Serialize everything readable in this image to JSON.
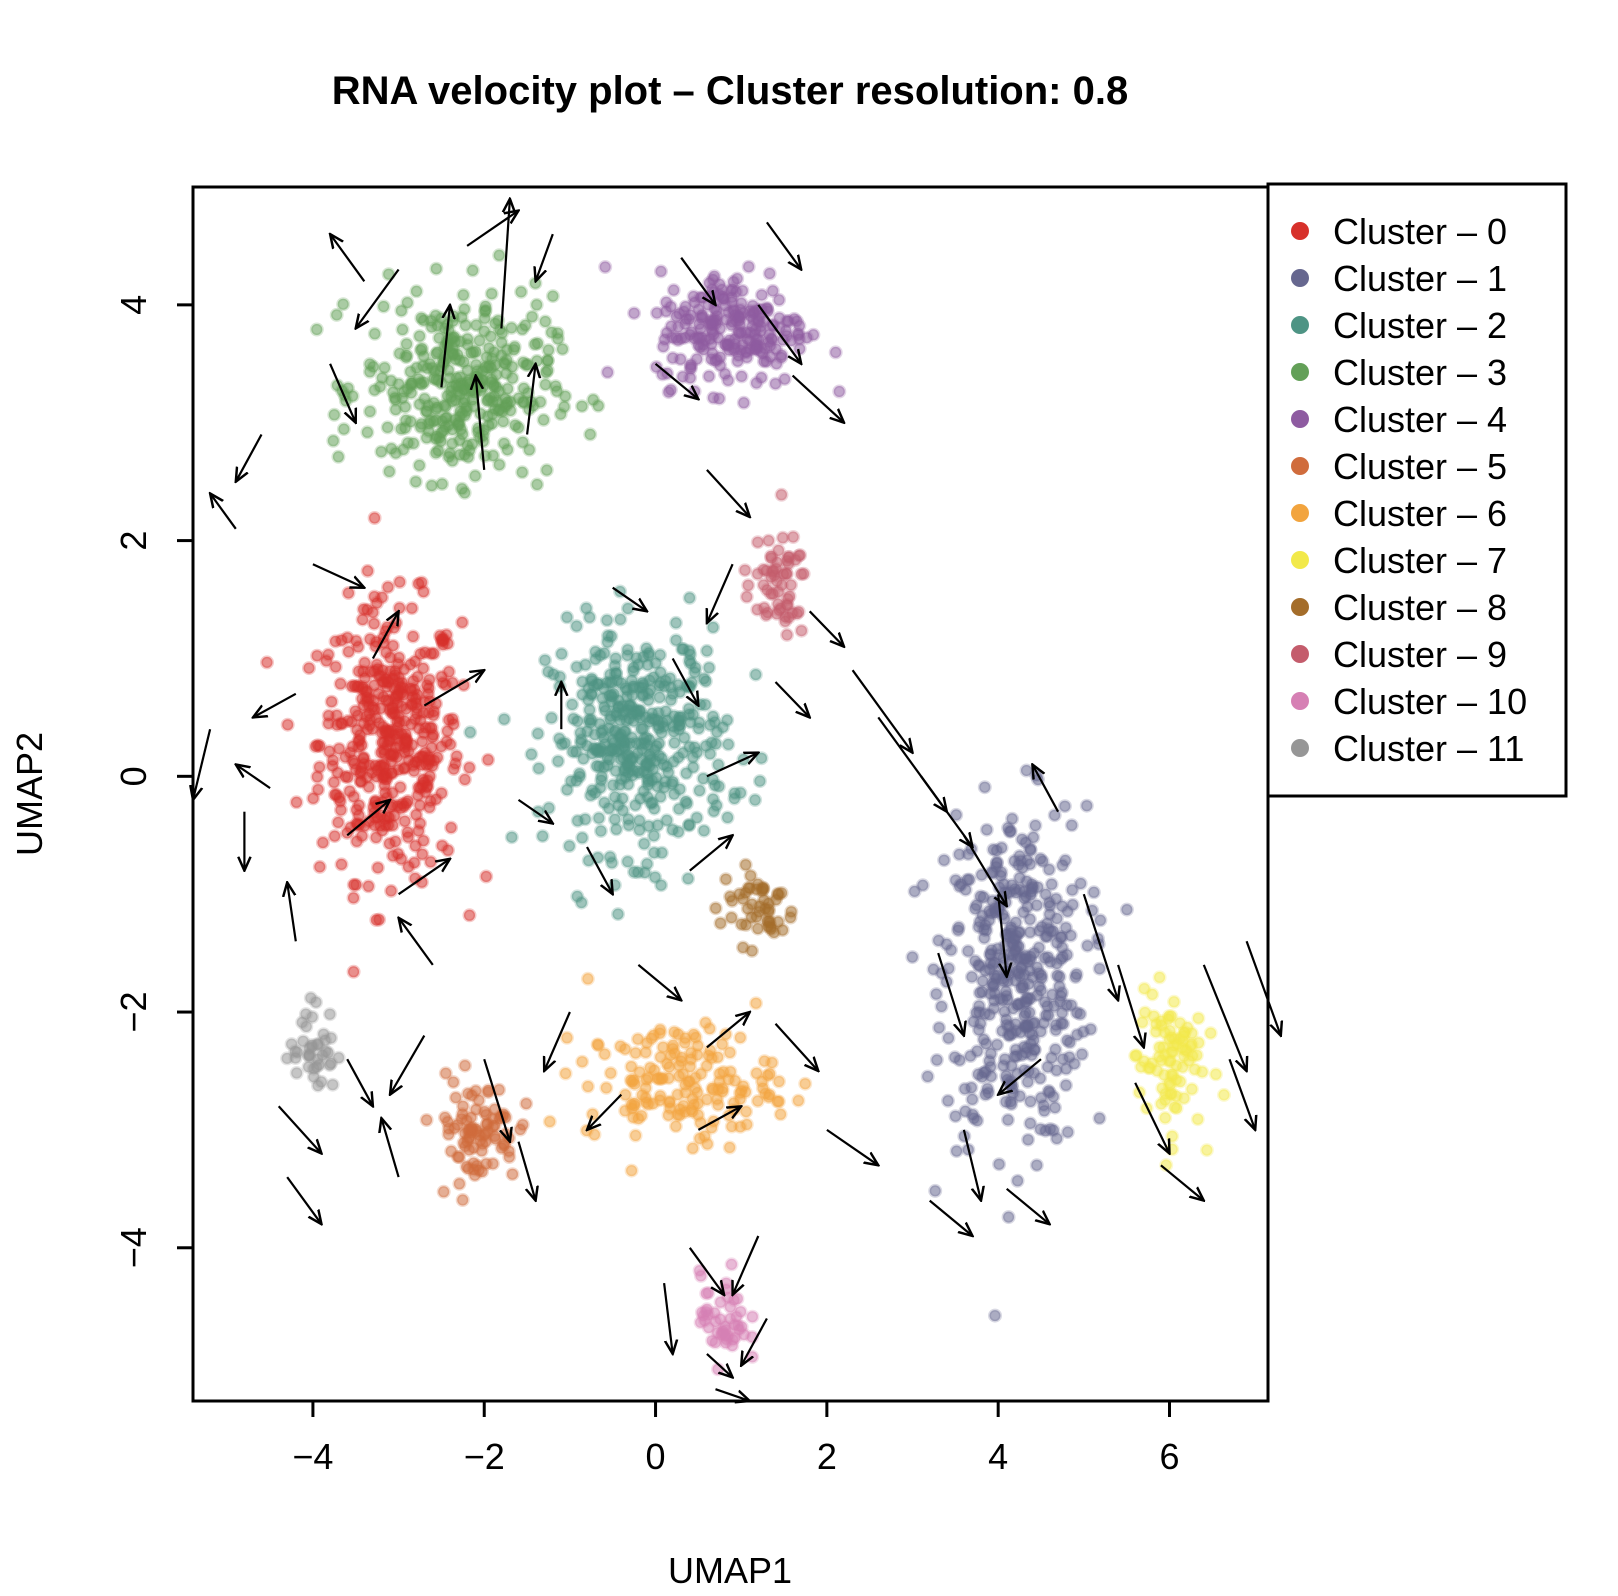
{
  "chart_data": {
    "type": "scatter",
    "title": "RNA velocity plot – Cluster resolution: 0.8",
    "xlabel": "UMAP1",
    "ylabel": "UMAP2",
    "xlim": [
      -5.4,
      7.15
    ],
    "ylim": [
      -5.3,
      5.0
    ],
    "x_ticks": [
      {
        "value": -4,
        "label": "−4"
      },
      {
        "value": -2,
        "label": "−2"
      },
      {
        "value": 0,
        "label": "0"
      },
      {
        "value": 2,
        "label": "2"
      },
      {
        "value": 4,
        "label": "4"
      },
      {
        "value": 6,
        "label": "6"
      }
    ],
    "y_ticks": [
      {
        "value": -4,
        "label": "−4"
      },
      {
        "value": -2,
        "label": "−2"
      },
      {
        "value": 0,
        "label": "0"
      },
      {
        "value": 2,
        "label": "2"
      },
      {
        "value": 4,
        "label": "4"
      }
    ],
    "grid": false,
    "legend_position": "top-right, outside plot",
    "arrow_color": "#000000",
    "series": [
      {
        "name": "Cluster – 0",
        "color": "#d7312b",
        "centroid": [
          -3.1,
          0.3
        ],
        "spread": [
          0.75,
          1.05
        ],
        "count": 430
      },
      {
        "name": "Cluster – 1",
        "color": "#66678f",
        "centroid": [
          4.2,
          -1.7
        ],
        "spread": [
          0.75,
          1.3
        ],
        "count": 420
      },
      {
        "name": "Cluster – 2",
        "color": "#4e9484",
        "centroid": [
          -0.2,
          0.3
        ],
        "spread": [
          0.95,
          0.85
        ],
        "count": 420
      },
      {
        "name": "Cluster – 3",
        "color": "#63a058",
        "centroid": [
          -2.3,
          3.3
        ],
        "spread": [
          1.0,
          0.7
        ],
        "count": 360
      },
      {
        "name": "Cluster – 4",
        "color": "#8e5ba1",
        "centroid": [
          0.9,
          3.8
        ],
        "spread": [
          0.8,
          0.45
        ],
        "count": 230
      },
      {
        "name": "Cluster – 5",
        "color": "#d06c3c",
        "centroid": [
          -2.1,
          -3.0
        ],
        "spread": [
          0.45,
          0.4
        ],
        "count": 90
      },
      {
        "name": "Cluster – 6",
        "color": "#f2a43e",
        "centroid": [
          0.3,
          -2.6
        ],
        "spread": [
          1.0,
          0.45
        ],
        "count": 170
      },
      {
        "name": "Cluster – 7",
        "color": "#f2e94a",
        "centroid": [
          6.0,
          -2.4
        ],
        "spread": [
          0.35,
          0.55
        ],
        "count": 90
      },
      {
        "name": "Cluster – 8",
        "color": "#a46d2a",
        "centroid": [
          1.2,
          -1.1
        ],
        "spread": [
          0.4,
          0.3
        ],
        "count": 50
      },
      {
        "name": "Cluster – 9",
        "color": "#c45c6c",
        "centroid": [
          1.4,
          1.6
        ],
        "spread": [
          0.35,
          0.4
        ],
        "count": 60
      },
      {
        "name": "Cluster – 10",
        "color": "#d680b4",
        "centroid": [
          0.8,
          -4.6
        ],
        "spread": [
          0.25,
          0.35
        ],
        "count": 50
      },
      {
        "name": "Cluster – 11",
        "color": "#969696",
        "centroid": [
          -4.0,
          -2.3
        ],
        "spread": [
          0.25,
          0.35
        ],
        "count": 40
      }
    ],
    "velocity_arrows": [
      {
        "from": [
          -3.4,
          4.2
        ],
        "to": [
          -3.8,
          4.6
        ]
      },
      {
        "from": [
          -3.0,
          4.3
        ],
        "to": [
          -3.5,
          3.8
        ]
      },
      {
        "from": [
          -2.2,
          4.5
        ],
        "to": [
          -1.6,
          4.8
        ]
      },
      {
        "from": [
          -1.8,
          3.8
        ],
        "to": [
          -1.7,
          4.9
        ]
      },
      {
        "from": [
          -2.5,
          3.3
        ],
        "to": [
          -2.4,
          4.0
        ]
      },
      {
        "from": [
          -3.8,
          3.5
        ],
        "to": [
          -3.5,
          3.0
        ]
      },
      {
        "from": [
          -1.2,
          4.6
        ],
        "to": [
          -1.4,
          4.2
        ]
      },
      {
        "from": [
          -2.0,
          2.6
        ],
        "to": [
          -2.1,
          3.4
        ]
      },
      {
        "from": [
          -1.5,
          2.9
        ],
        "to": [
          -1.4,
          3.5
        ]
      },
      {
        "from": [
          -4.6,
          2.9
        ],
        "to": [
          -4.9,
          2.5
        ]
      },
      {
        "from": [
          -4.9,
          2.1
        ],
        "to": [
          -5.2,
          2.4
        ]
      },
      {
        "from": [
          -4.0,
          1.8
        ],
        "to": [
          -3.4,
          1.6
        ]
      },
      {
        "from": [
          -3.3,
          1.0
        ],
        "to": [
          -3.0,
          1.4
        ]
      },
      {
        "from": [
          -2.7,
          0.6
        ],
        "to": [
          -2.0,
          0.9
        ]
      },
      {
        "from": [
          -4.2,
          0.7
        ],
        "to": [
          -4.7,
          0.5
        ]
      },
      {
        "from": [
          -4.5,
          -0.1
        ],
        "to": [
          -4.9,
          0.1
        ]
      },
      {
        "from": [
          -3.6,
          -0.5
        ],
        "to": [
          -3.1,
          -0.2
        ]
      },
      {
        "from": [
          -3.0,
          -1.0
        ],
        "to": [
          -2.4,
          -0.7
        ]
      },
      {
        "from": [
          -4.2,
          -1.4
        ],
        "to": [
          -4.3,
          -0.9
        ]
      },
      {
        "from": [
          -2.6,
          -1.6
        ],
        "to": [
          -3.0,
          -1.2
        ]
      },
      {
        "from": [
          -5.2,
          0.4
        ],
        "to": [
          -5.4,
          -0.2
        ]
      },
      {
        "from": [
          -4.8,
          -0.3
        ],
        "to": [
          -4.8,
          -0.8
        ]
      },
      {
        "from": [
          -0.5,
          1.6
        ],
        "to": [
          -0.1,
          1.4
        ]
      },
      {
        "from": [
          0.2,
          1.0
        ],
        "to": [
          0.5,
          0.6
        ]
      },
      {
        "from": [
          -1.1,
          0.4
        ],
        "to": [
          -1.1,
          0.8
        ]
      },
      {
        "from": [
          0.6,
          0.0
        ],
        "to": [
          1.2,
          0.2
        ]
      },
      {
        "from": [
          -0.8,
          -0.6
        ],
        "to": [
          -0.5,
          -1.0
        ]
      },
      {
        "from": [
          0.4,
          -0.8
        ],
        "to": [
          0.9,
          -0.5
        ]
      },
      {
        "from": [
          -1.6,
          -0.2
        ],
        "to": [
          -1.2,
          -0.4
        ]
      },
      {
        "from": [
          0.9,
          1.8
        ],
        "to": [
          0.6,
          1.3
        ]
      },
      {
        "from": [
          0.3,
          4.4
        ],
        "to": [
          0.7,
          4.0
        ]
      },
      {
        "from": [
          1.2,
          4.0
        ],
        "to": [
          1.7,
          3.5
        ]
      },
      {
        "from": [
          1.6,
          3.4
        ],
        "to": [
          2.2,
          3.0
        ]
      },
      {
        "from": [
          0.0,
          3.5
        ],
        "to": [
          0.5,
          3.2
        ]
      },
      {
        "from": [
          0.6,
          2.6
        ],
        "to": [
          1.1,
          2.2
        ]
      },
      {
        "from": [
          1.3,
          4.7
        ],
        "to": [
          1.7,
          4.3
        ]
      },
      {
        "from": [
          1.8,
          1.4
        ],
        "to": [
          2.2,
          1.1
        ]
      },
      {
        "from": [
          1.4,
          0.8
        ],
        "to": [
          1.8,
          0.5
        ]
      },
      {
        "from": [
          2.3,
          0.9
        ],
        "to": [
          3.0,
          0.2
        ]
      },
      {
        "from": [
          2.6,
          0.5
        ],
        "to": [
          3.4,
          -0.3
        ]
      },
      {
        "from": [
          3.1,
          0.0
        ],
        "to": [
          3.7,
          -0.6
        ]
      },
      {
        "from": [
          3.6,
          -0.5
        ],
        "to": [
          4.1,
          -1.1
        ]
      },
      {
        "from": [
          4.0,
          -1.0
        ],
        "to": [
          4.1,
          -1.7
        ]
      },
      {
        "from": [
          3.3,
          -1.5
        ],
        "to": [
          3.6,
          -2.2
        ]
      },
      {
        "from": [
          4.5,
          -2.4
        ],
        "to": [
          4.0,
          -2.7
        ]
      },
      {
        "from": [
          3.6,
          -3.0
        ],
        "to": [
          3.8,
          -3.6
        ]
      },
      {
        "from": [
          3.2,
          -3.6
        ],
        "to": [
          3.7,
          -3.9
        ]
      },
      {
        "from": [
          4.1,
          -3.5
        ],
        "to": [
          4.6,
          -3.8
        ]
      },
      {
        "from": [
          5.0,
          -1.0
        ],
        "to": [
          5.4,
          -1.9
        ]
      },
      {
        "from": [
          5.4,
          -1.6
        ],
        "to": [
          5.7,
          -2.3
        ]
      },
      {
        "from": [
          5.6,
          -2.6
        ],
        "to": [
          6.0,
          -3.2
        ]
      },
      {
        "from": [
          6.4,
          -1.6
        ],
        "to": [
          6.9,
          -2.5
        ]
      },
      {
        "from": [
          6.7,
          -2.4
        ],
        "to": [
          7.0,
          -3.0
        ]
      },
      {
        "from": [
          6.9,
          -1.4
        ],
        "to": [
          7.3,
          -2.2
        ]
      },
      {
        "from": [
          5.9,
          -3.3
        ],
        "to": [
          6.4,
          -3.6
        ]
      },
      {
        "from": [
          4.7,
          -0.3
        ],
        "to": [
          4.4,
          0.1
        ]
      },
      {
        "from": [
          -0.2,
          -1.6
        ],
        "to": [
          0.3,
          -1.9
        ]
      },
      {
        "from": [
          0.6,
          -2.3
        ],
        "to": [
          1.1,
          -2.0
        ]
      },
      {
        "from": [
          -0.4,
          -2.7
        ],
        "to": [
          -0.8,
          -3.0
        ]
      },
      {
        "from": [
          0.5,
          -3.0
        ],
        "to": [
          1.0,
          -2.8
        ]
      },
      {
        "from": [
          1.4,
          -2.1
        ],
        "to": [
          1.9,
          -2.5
        ]
      },
      {
        "from": [
          2.0,
          -3.0
        ],
        "to": [
          2.6,
          -3.3
        ]
      },
      {
        "from": [
          -1.0,
          -2.0
        ],
        "to": [
          -1.3,
          -2.5
        ]
      },
      {
        "from": [
          -2.7,
          -2.2
        ],
        "to": [
          -3.1,
          -2.7
        ]
      },
      {
        "from": [
          -3.6,
          -2.4
        ],
        "to": [
          -3.3,
          -2.8
        ]
      },
      {
        "from": [
          -3.0,
          -3.4
        ],
        "to": [
          -3.2,
          -2.9
        ]
      },
      {
        "from": [
          -4.4,
          -2.8
        ],
        "to": [
          -3.9,
          -3.2
        ]
      },
      {
        "from": [
          -4.3,
          -3.4
        ],
        "to": [
          -3.9,
          -3.8
        ]
      },
      {
        "from": [
          -2.0,
          -2.4
        ],
        "to": [
          -1.7,
          -3.1
        ]
      },
      {
        "from": [
          -1.6,
          -3.1
        ],
        "to": [
          -1.4,
          -3.6
        ]
      },
      {
        "from": [
          0.4,
          -4.0
        ],
        "to": [
          0.8,
          -4.4
        ]
      },
      {
        "from": [
          1.2,
          -3.9
        ],
        "to": [
          0.9,
          -4.4
        ]
      },
      {
        "from": [
          0.6,
          -4.9
        ],
        "to": [
          0.9,
          -5.1
        ]
      },
      {
        "from": [
          1.3,
          -4.6
        ],
        "to": [
          1.0,
          -5.0
        ]
      },
      {
        "from": [
          0.1,
          -4.3
        ],
        "to": [
          0.2,
          -4.9
        ]
      },
      {
        "from": [
          0.7,
          -5.2
        ],
        "to": [
          1.1,
          -5.3
        ]
      }
    ]
  },
  "legend": {
    "entries": [
      {
        "label": "Cluster – 0",
        "color": "#d7312b"
      },
      {
        "label": "Cluster – 1",
        "color": "#66678f"
      },
      {
        "label": "Cluster – 2",
        "color": "#4e9484"
      },
      {
        "label": "Cluster – 3",
        "color": "#63a058"
      },
      {
        "label": "Cluster – 4",
        "color": "#8e5ba1"
      },
      {
        "label": "Cluster – 5",
        "color": "#d06c3c"
      },
      {
        "label": "Cluster – 6",
        "color": "#f2a43e"
      },
      {
        "label": "Cluster – 7",
        "color": "#f2e94a"
      },
      {
        "label": "Cluster – 8",
        "color": "#a46d2a"
      },
      {
        "label": "Cluster – 9",
        "color": "#c45c6c"
      },
      {
        "label": "Cluster – 10",
        "color": "#d680b4"
      },
      {
        "label": "Cluster – 11",
        "color": "#969696"
      }
    ]
  }
}
